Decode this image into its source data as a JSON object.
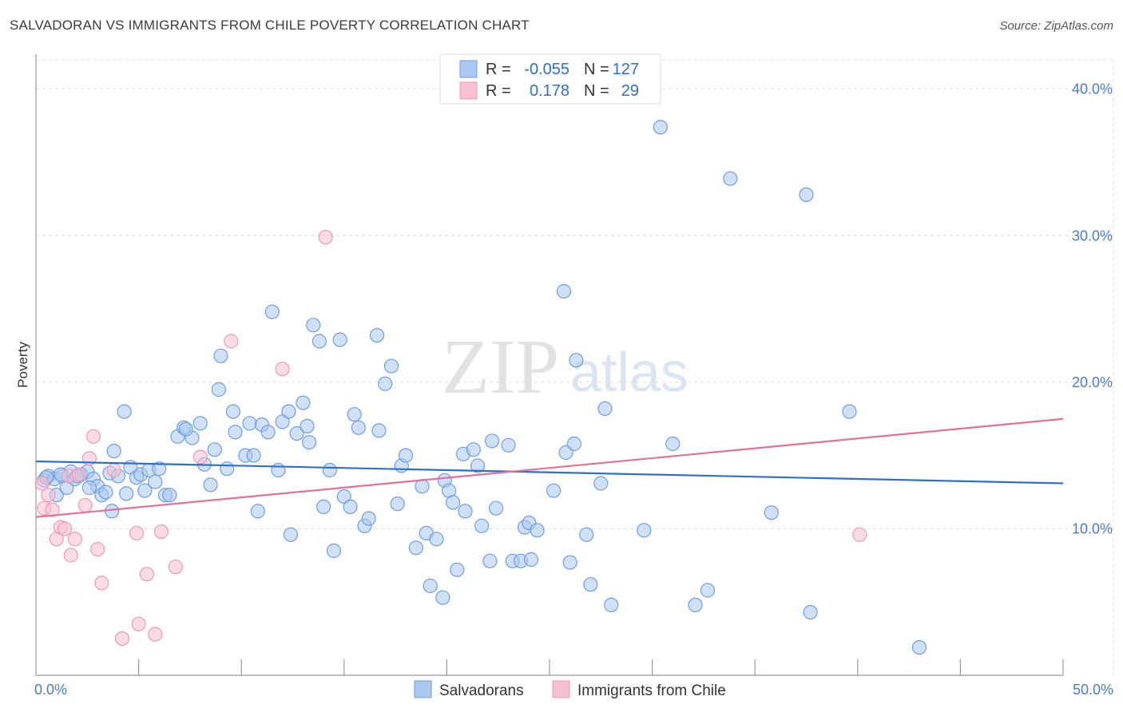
{
  "title": "SALVADORAN VS IMMIGRANTS FROM CHILE POVERTY CORRELATION CHART",
  "source": "Source: ZipAtlas.com",
  "watermark": {
    "zip": "ZIP",
    "atlas": "atlas"
  },
  "legend": {
    "rows": [
      {
        "r_label": "R =",
        "r_value": "-0.055",
        "n_label": "N =",
        "n_value": "127"
      },
      {
        "r_label": "R =",
        "r_value": "0.178",
        "n_label": "N =",
        "n_value": "29"
      }
    ]
  },
  "bottom_legend": [
    "Salvadorans",
    "Immigrants from Chile"
  ],
  "colors": {
    "blue_fill": "#aac8f0",
    "blue_stroke": "#6f9ee0",
    "blue_line": "#2f6ecf",
    "pink_fill": "#f7bfd1",
    "pink_stroke": "#ec9ab6",
    "pink_line": "#e3709a",
    "tick_text": "#4a7cc9",
    "grid": "#dddddd"
  },
  "chart_data": {
    "type": "scatter",
    "title": "SALVADORAN VS IMMIGRANTS FROM CHILE POVERTY CORRELATION CHART",
    "xlabel": "",
    "ylabel": "Poverty",
    "xlim": [
      0,
      50
    ],
    "ylim": [
      0,
      42
    ],
    "x_tick_labels": [
      {
        "value": 0,
        "label": "0.0%"
      },
      {
        "value": 50,
        "label": "50.0%"
      }
    ],
    "y_ticks": [
      {
        "value": 10,
        "label": "10.0%"
      },
      {
        "value": 20,
        "label": "20.0%"
      },
      {
        "value": 30,
        "label": "30.0%"
      },
      {
        "value": 40,
        "label": "40.0%"
      }
    ],
    "x_minor_ticks": [
      5,
      10,
      15,
      20,
      25,
      30,
      35,
      40,
      45,
      50
    ],
    "series": [
      {
        "name": "Salvadorans",
        "r": -0.055,
        "n": 127,
        "trend": {
          "x": [
            0,
            50
          ],
          "y": [
            14.6,
            13.1
          ]
        },
        "points": [
          [
            0.4,
            13.3
          ],
          [
            0.6,
            13.6
          ],
          [
            0.9,
            13.4
          ],
          [
            1.0,
            12.3
          ],
          [
            1.3,
            13.6
          ],
          [
            1.5,
            12.8
          ],
          [
            1.7,
            13.9
          ],
          [
            1.9,
            13.4
          ],
          [
            2.2,
            13.7
          ],
          [
            2.5,
            13.9
          ],
          [
            2.8,
            13.4
          ],
          [
            3.0,
            12.9
          ],
          [
            3.2,
            12.3
          ],
          [
            3.4,
            12.5
          ],
          [
            3.6,
            13.8
          ],
          [
            3.7,
            11.2
          ],
          [
            4.0,
            13.6
          ],
          [
            4.4,
            12.4
          ],
          [
            4.6,
            14.2
          ],
          [
            4.9,
            13.5
          ],
          [
            5.1,
            13.7
          ],
          [
            5.5,
            14.0
          ],
          [
            5.8,
            13.2
          ],
          [
            6.0,
            14.1
          ],
          [
            6.3,
            12.3
          ],
          [
            3.8,
            15.3
          ],
          [
            4.3,
            18.0
          ],
          [
            6.9,
            16.3
          ],
          [
            7.2,
            16.9
          ],
          [
            7.6,
            16.2
          ],
          [
            8.0,
            17.2
          ],
          [
            8.2,
            14.4
          ],
          [
            8.5,
            13.0
          ],
          [
            8.7,
            15.4
          ],
          [
            8.9,
            19.5
          ],
          [
            9.0,
            21.8
          ],
          [
            9.3,
            14.1
          ],
          [
            9.6,
            18.0
          ],
          [
            9.7,
            16.6
          ],
          [
            10.2,
            15.0
          ],
          [
            10.4,
            17.2
          ],
          [
            10.6,
            15.0
          ],
          [
            10.8,
            11.2
          ],
          [
            11.0,
            17.1
          ],
          [
            11.3,
            16.6
          ],
          [
            11.5,
            24.8
          ],
          [
            11.8,
            14.0
          ],
          [
            12.0,
            17.3
          ],
          [
            12.3,
            18.0
          ],
          [
            12.4,
            9.6
          ],
          [
            12.7,
            16.5
          ],
          [
            13.0,
            18.6
          ],
          [
            13.2,
            17.0
          ],
          [
            13.3,
            15.9
          ],
          [
            13.5,
            23.9
          ],
          [
            13.8,
            22.8
          ],
          [
            14.0,
            11.5
          ],
          [
            14.3,
            14.0
          ],
          [
            14.5,
            8.5
          ],
          [
            14.8,
            22.9
          ],
          [
            15.0,
            12.2
          ],
          [
            15.3,
            11.5
          ],
          [
            15.5,
            17.8
          ],
          [
            15.7,
            16.9
          ],
          [
            16.0,
            10.2
          ],
          [
            16.2,
            10.7
          ],
          [
            16.6,
            23.2
          ],
          [
            16.7,
            16.7
          ],
          [
            17.0,
            19.9
          ],
          [
            17.3,
            21.1
          ],
          [
            17.6,
            11.7
          ],
          [
            17.8,
            14.3
          ],
          [
            18.0,
            15.0
          ],
          [
            18.5,
            8.7
          ],
          [
            18.8,
            12.9
          ],
          [
            19.0,
            9.7
          ],
          [
            19.2,
            6.1
          ],
          [
            19.5,
            9.3
          ],
          [
            19.8,
            5.3
          ],
          [
            19.9,
            13.3
          ],
          [
            20.1,
            12.6
          ],
          [
            20.3,
            11.8
          ],
          [
            20.5,
            7.2
          ],
          [
            20.9,
            11.2
          ],
          [
            20.8,
            15.1
          ],
          [
            21.3,
            15.4
          ],
          [
            21.5,
            14.3
          ],
          [
            21.7,
            10.2
          ],
          [
            22.1,
            7.8
          ],
          [
            22.2,
            16.0
          ],
          [
            22.4,
            11.4
          ],
          [
            23.0,
            15.7
          ],
          [
            23.2,
            7.8
          ],
          [
            23.6,
            7.8
          ],
          [
            23.8,
            10.1
          ],
          [
            24.0,
            10.4
          ],
          [
            24.1,
            7.9
          ],
          [
            24.4,
            9.9
          ],
          [
            25.2,
            12.6
          ],
          [
            25.7,
            26.2
          ],
          [
            25.8,
            15.2
          ],
          [
            26.0,
            7.7
          ],
          [
            26.2,
            15.8
          ],
          [
            26.3,
            21.5
          ],
          [
            26.8,
            9.6
          ],
          [
            27.0,
            6.2
          ],
          [
            27.5,
            13.1
          ],
          [
            27.7,
            18.2
          ],
          [
            28.0,
            4.8
          ],
          [
            29.6,
            9.9
          ],
          [
            30.4,
            37.4
          ],
          [
            31.0,
            15.8
          ],
          [
            32.1,
            4.8
          ],
          [
            32.7,
            5.8
          ],
          [
            33.8,
            33.9
          ],
          [
            35.8,
            11.1
          ],
          [
            37.5,
            32.8
          ],
          [
            37.7,
            4.3
          ],
          [
            39.6,
            18.0
          ],
          [
            43.0,
            1.9
          ],
          [
            0.5,
            13.5
          ],
          [
            1.2,
            13.7
          ],
          [
            2.0,
            13.6
          ],
          [
            2.6,
            12.8
          ],
          [
            5.3,
            12.6
          ],
          [
            6.5,
            12.3
          ],
          [
            7.3,
            16.8
          ]
        ]
      },
      {
        "name": "Immigrants from Chile",
        "r": 0.178,
        "n": 29,
        "trend": {
          "x": [
            0,
            50
          ],
          "y": [
            10.8,
            17.5
          ]
        },
        "points": [
          [
            0.3,
            13.1
          ],
          [
            0.4,
            11.4
          ],
          [
            0.6,
            12.3
          ],
          [
            0.8,
            11.3
          ],
          [
            1.0,
            9.3
          ],
          [
            1.2,
            10.1
          ],
          [
            1.4,
            10.0
          ],
          [
            1.6,
            13.6
          ],
          [
            1.7,
            8.2
          ],
          [
            1.9,
            9.3
          ],
          [
            2.1,
            13.7
          ],
          [
            2.4,
            11.6
          ],
          [
            2.6,
            14.8
          ],
          [
            2.8,
            16.3
          ],
          [
            3.0,
            8.6
          ],
          [
            3.2,
            6.3
          ],
          [
            3.8,
            14.0
          ],
          [
            4.2,
            2.5
          ],
          [
            4.9,
            9.7
          ],
          [
            5.0,
            3.5
          ],
          [
            5.4,
            6.9
          ],
          [
            5.8,
            2.8
          ],
          [
            6.1,
            9.8
          ],
          [
            6.8,
            7.4
          ],
          [
            8.0,
            14.9
          ],
          [
            9.5,
            22.8
          ],
          [
            12.0,
            20.9
          ],
          [
            14.1,
            29.9
          ],
          [
            40.1,
            9.6
          ]
        ]
      }
    ]
  }
}
